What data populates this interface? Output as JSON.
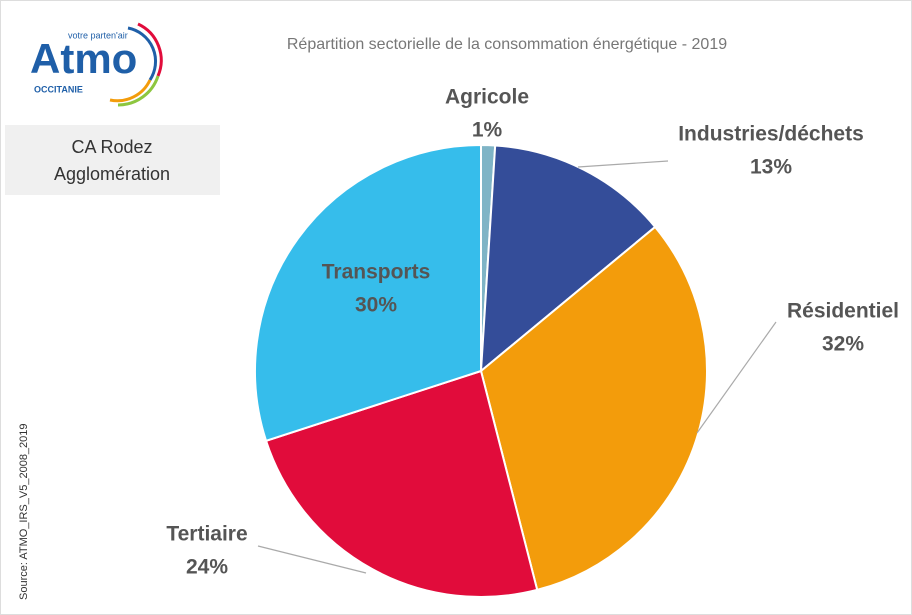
{
  "logo": {
    "name": "Atmo",
    "tagline": "votre parten'air",
    "region": "OCCITANIE"
  },
  "location": [
    "CA Rodez",
    "Agglomération"
  ],
  "source": "Source: ATMO_IRS_V5_2008_2019",
  "chart_data": {
    "type": "pie",
    "title": "Répartition sectorielle de la consommation énergétique - 2019",
    "categories": [
      "Agricole",
      "Industries/déchets",
      "Résidentiel",
      "Tertiaire",
      "Transports"
    ],
    "values": [
      1,
      13,
      32,
      24,
      30
    ],
    "value_labels": [
      "1%",
      "13%",
      "32%",
      "24%",
      "30%"
    ],
    "colors": [
      "#7fb4c6",
      "#344d99",
      "#f39c0b",
      "#e10c3b",
      "#36bdeb"
    ]
  }
}
